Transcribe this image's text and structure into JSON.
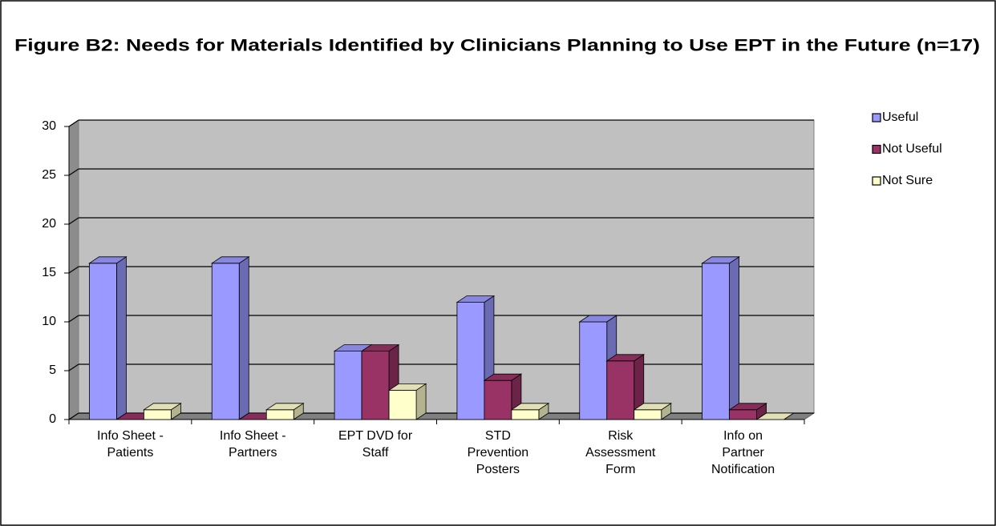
{
  "chart_data": {
    "type": "bar3d",
    "title": "Figure B2: Needs for Materials Identified by Clinicians Planning to Use EPT in the Future (n=17)",
    "categories": [
      "Info Sheet - Patients",
      "Info Sheet - Partners",
      "EPT DVD for Staff",
      "STD Prevention Posters",
      "Risk Assessment Form",
      "Info on Partner Notification"
    ],
    "series": [
      {
        "name": "Useful",
        "color": "#9999ff",
        "values": [
          16,
          16,
          7,
          12,
          10,
          16
        ]
      },
      {
        "name": "Not Useful",
        "color": "#993366",
        "values": [
          0,
          0,
          7,
          4,
          6,
          1
        ]
      },
      {
        "name": "Not Sure",
        "color": "#ffffcc",
        "values": [
          1,
          1,
          3,
          1,
          1,
          0
        ]
      }
    ],
    "ylim": [
      0,
      30
    ],
    "yticks": [
      0,
      5,
      10,
      15,
      20,
      25,
      30
    ],
    "grid": true,
    "legend": "right"
  }
}
